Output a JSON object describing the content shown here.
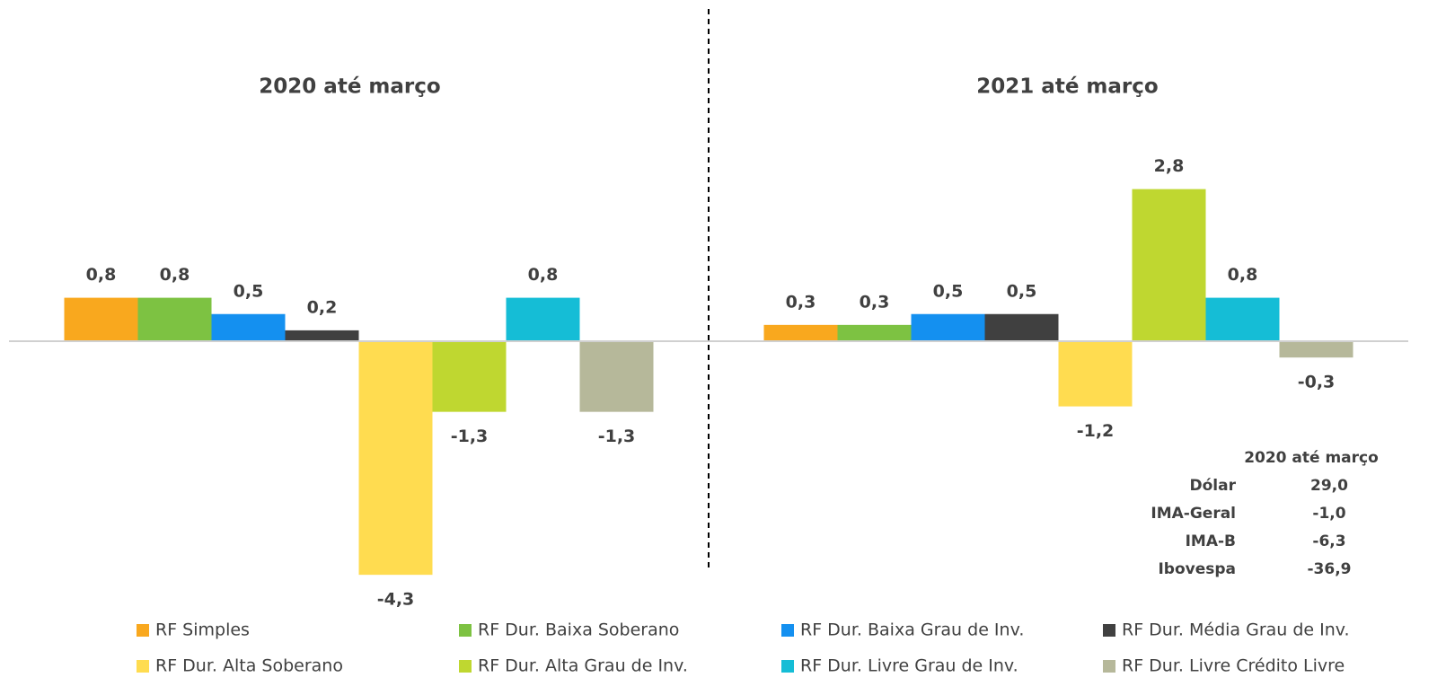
{
  "chart_data": {
    "type": "bar",
    "categories": [
      "2020 até março",
      "2021 até março"
    ],
    "series": [
      {
        "name": "RF Simples",
        "color": "#F9A81E",
        "values": [
          0.8,
          0.3
        ],
        "value_labels": [
          "0,8",
          "0,3"
        ]
      },
      {
        "name": "RF Dur. Baixa Soberano",
        "color": "#7DC242",
        "values": [
          0.8,
          0.3
        ],
        "value_labels": [
          "0,8",
          "0,3"
        ]
      },
      {
        "name": "RF Dur. Baixa Grau de Inv.",
        "color": "#1490F0",
        "values": [
          0.5,
          0.5
        ],
        "value_labels": [
          "0,5",
          "0,5"
        ]
      },
      {
        "name": "RF Dur. Média Grau de Inv.",
        "color": "#404040",
        "values": [
          0.2,
          0.5
        ],
        "value_labels": [
          "0,2",
          "0,5"
        ]
      },
      {
        "name": "RF Dur. Alta Soberano",
        "color": "#FFDC50",
        "values": [
          -4.3,
          -1.2
        ],
        "value_labels": [
          "-4,3",
          "-1,2"
        ]
      },
      {
        "name": "RF Dur. Alta Grau de Inv.",
        "color": "#BFD730",
        "values": [
          -1.3,
          2.8
        ],
        "value_labels": [
          "-1,3",
          "2,8"
        ]
      },
      {
        "name": "RF Dur. Livre Grau de Inv.",
        "color": "#15BDD6",
        "values": [
          0.8,
          0.8
        ],
        "value_labels": [
          "0,8",
          "0,8"
        ]
      },
      {
        "name": "RF Dur. Livre Crédito Livre",
        "color": "#B6B89A",
        "values": [
          -1.3,
          -0.3
        ],
        "value_labels": [
          "-1,3",
          "-0,3"
        ]
      }
    ],
    "ylim": [
      -4.5,
      4.5
    ]
  },
  "table": {
    "header": "2020 até março",
    "rows": [
      [
        "Dólar",
        "29,0"
      ],
      [
        "IMA-Geral",
        "-1,0"
      ],
      [
        "IMA-B",
        "-6,3"
      ],
      [
        "Ibovespa",
        "-36,9"
      ]
    ]
  }
}
